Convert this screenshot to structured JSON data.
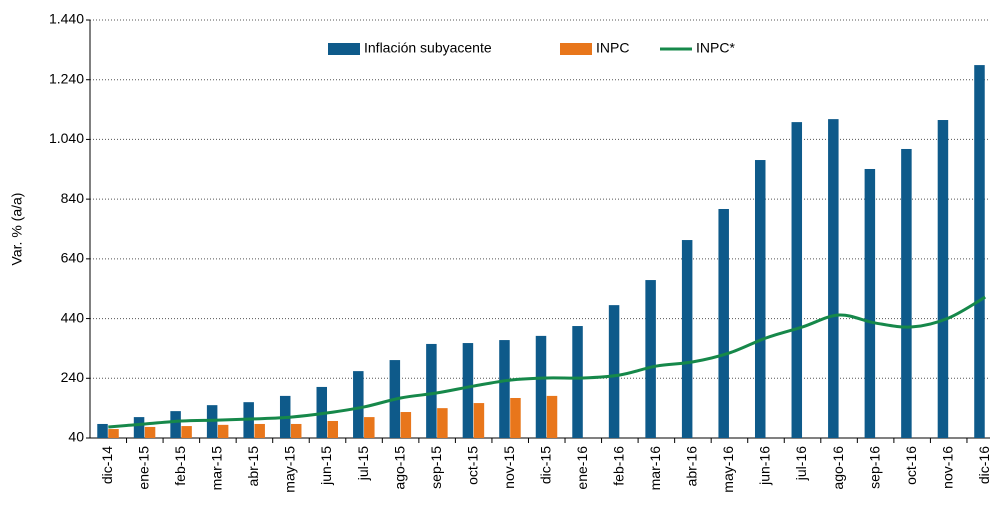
{
  "chart_data": {
    "type": "bar",
    "y_label": "Var. % (a/a)",
    "categories": [
      "dic-14",
      "ene-15",
      "feb-15",
      "mar-15",
      "abr-15",
      "may-15",
      "jun-15",
      "jul-15",
      "ago-15",
      "sep-15",
      "oct-15",
      "nov-15",
      "dic-15",
      "ene-16",
      "feb-16",
      "mar-16",
      "abr-16",
      "may-16",
      "jun-16",
      "jul-16",
      "ago-16",
      "sep-16",
      "oct-16",
      "nov-16",
      "dic-16"
    ],
    "series": [
      {
        "name": "Inflación subyacente",
        "type": "bar",
        "color": "#0e5a8a",
        "values": [
          87,
          110,
          130,
          150,
          160,
          181,
          211,
          264,
          301,
          355,
          358,
          368,
          382,
          415,
          485,
          569,
          703,
          807,
          971,
          1098,
          1108,
          941,
          1008,
          1105,
          1289
        ]
      },
      {
        "name": "INPC",
        "type": "bar",
        "color": "#e8761b",
        "values": [
          70,
          77,
          80,
          84,
          87,
          87,
          97,
          110,
          127,
          140,
          157,
          174,
          181,
          null,
          null,
          null,
          null,
          null,
          null,
          null,
          null,
          null,
          null,
          null,
          null
        ]
      },
      {
        "name": "INPC*",
        "type": "line",
        "color": "#16884a",
        "values": [
          77,
          87,
          97,
          100,
          104,
          110,
          124,
          144,
          174,
          191,
          214,
          234,
          241,
          241,
          251,
          281,
          295,
          325,
          375,
          412,
          452,
          425,
          412,
          442,
          512
        ]
      }
    ],
    "ylim": [
      40,
      1440
    ],
    "yticks": [
      40,
      240,
      440,
      640,
      840,
      {
        "value": 1040,
        "label": "1.040"
      },
      {
        "value": 1240,
        "label": "1.240"
      },
      {
        "value": 1440,
        "label": "1.440"
      }
    ],
    "grid": true,
    "legend": "top"
  }
}
